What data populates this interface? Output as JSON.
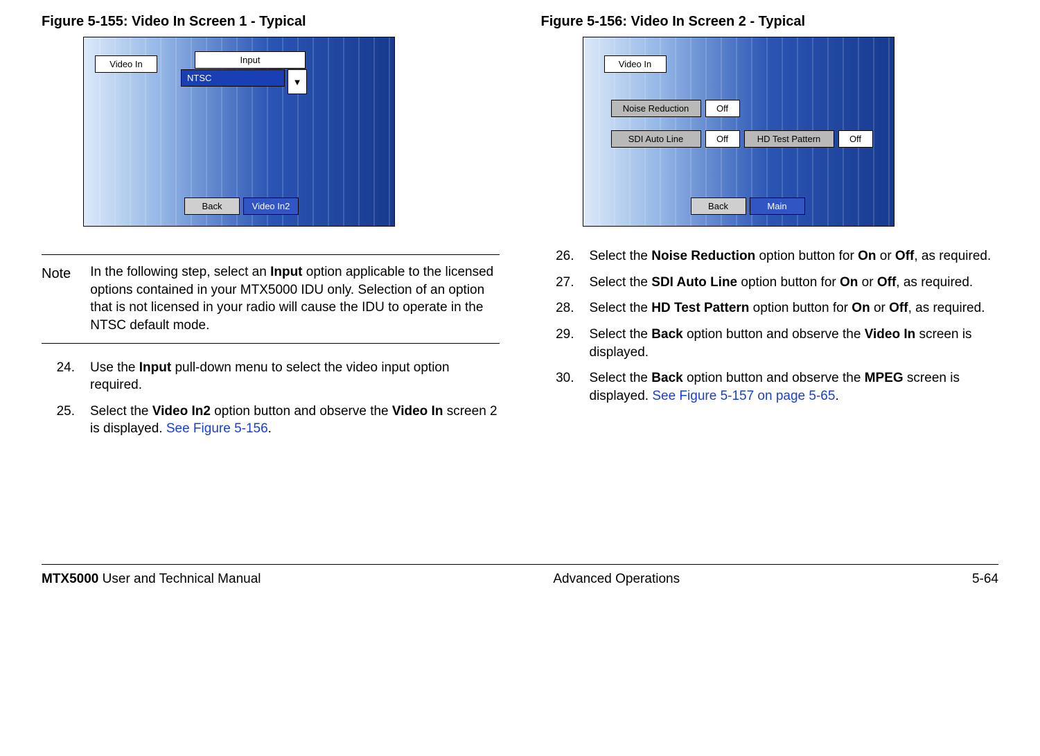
{
  "left": {
    "figure_title": "Figure 5-155:   Video In Screen 1 - Typical",
    "screen": {
      "bg_gradient_colors": [
        "#dce9f9",
        "#93b6e6",
        "#2a55b4",
        "#183a8f"
      ],
      "video_in_label": "Video In",
      "input_label": "Input",
      "input_value": "NTSC",
      "back_label": "Back",
      "next_label": "Video In2",
      "dropdown_glyph": "▼"
    },
    "note_label": "Note",
    "note_text": "In the following step, select an Input option applicable to the licensed options contained in your MTX5000 IDU only.  Selection of an option that is not licensed in your radio will cause the IDU to operate in the NTSC default mode.",
    "note_bold_word": "Input",
    "steps": [
      {
        "num": "24.",
        "html": "Use the <b>Input</b> pull-down menu to select the video input option required."
      },
      {
        "num": "25.",
        "html": "Select the <b>Video In2</b> option button and observe the <b>Video In</b> screen 2 is displayed.  <span class=\"link\">See Figure 5-156</span>."
      }
    ]
  },
  "right": {
    "figure_title": "Figure 5-156:   Video In Screen 2 - Typical",
    "screen": {
      "bg_gradient_colors": [
        "#dce9f9",
        "#93b6e6",
        "#2a55b4",
        "#183a8f"
      ],
      "video_in_label": "Video In",
      "noise_reduction_label": "Noise Reduction",
      "noise_reduction_value": "Off",
      "sdi_label": "SDI Auto Line",
      "sdi_value": "Off",
      "hd_label": "HD Test Pattern",
      "hd_value": "Off",
      "back_label": "Back",
      "main_label": "Main"
    },
    "steps": [
      {
        "num": "26.",
        "html": "Select the <b>Noise Reduction</b> option button for <b>On</b> or <b>Off</b>, as required."
      },
      {
        "num": "27.",
        "html": "Select the <b>SDI Auto Line</b> option button for <b>On</b> or <b>Off</b>, as required."
      },
      {
        "num": "28.",
        "html": "Select the <b>HD Test Pattern</b> option button for <b>On</b> or <b>Off</b>, as required."
      },
      {
        "num": "29.",
        "html": "Select the <b>Back</b> option button and observe the <b>Video In</b> screen is displayed."
      },
      {
        "num": "30.",
        "html": "Select the <b>Back</b> option button and observe the <b>MPEG</b> screen is displayed.  <span class=\"link\">See Figure 5-157 on page 5-65</span>."
      }
    ]
  },
  "footer": {
    "left_html": "<b>MTX5000</b> User and Technical Manual",
    "center": "Advanced Operations",
    "right": "5-64"
  }
}
